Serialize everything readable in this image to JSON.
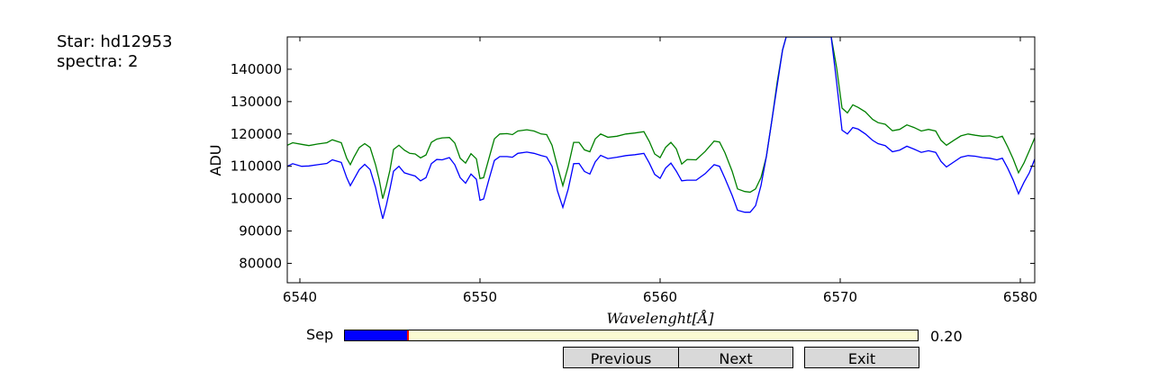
{
  "info": {
    "star_line": "Star: hd12953",
    "spectra_line": "spectra: 2"
  },
  "chart_data": {
    "type": "line",
    "title": "",
    "xlabel": "Wavelenght[Å]",
    "ylabel": "ADU",
    "xlim": [
      6539.3,
      6580.8
    ],
    "ylim": [
      74000,
      150000
    ],
    "xticks": [
      6540,
      6550,
      6560,
      6570,
      6580
    ],
    "yticks": [
      80000,
      90000,
      100000,
      110000,
      120000,
      130000,
      140000
    ],
    "grid": false,
    "series": [
      {
        "color": "#008000",
        "points": [
          [
            6539.3,
            116500
          ],
          [
            6539.6,
            117300
          ],
          [
            6540.1,
            116800
          ],
          [
            6540.5,
            116400
          ],
          [
            6541.0,
            116900
          ],
          [
            6541.5,
            117300
          ],
          [
            6541.8,
            118200
          ],
          [
            6542.3,
            117300
          ],
          [
            6542.6,
            112500
          ],
          [
            6542.8,
            110500
          ],
          [
            6543.0,
            112800
          ],
          [
            6543.3,
            115800
          ],
          [
            6543.6,
            117000
          ],
          [
            6543.9,
            115800
          ],
          [
            6544.2,
            110500
          ],
          [
            6544.4,
            106000
          ],
          [
            6544.6,
            100000
          ],
          [
            6544.8,
            104000
          ],
          [
            6545.0,
            108800
          ],
          [
            6545.2,
            115200
          ],
          [
            6545.5,
            116500
          ],
          [
            6545.8,
            115000
          ],
          [
            6546.1,
            114000
          ],
          [
            6546.4,
            113800
          ],
          [
            6546.7,
            112600
          ],
          [
            6547.0,
            113500
          ],
          [
            6547.3,
            117400
          ],
          [
            6547.6,
            118400
          ],
          [
            6547.9,
            118800
          ],
          [
            6548.3,
            118900
          ],
          [
            6548.6,
            117200
          ],
          [
            6548.9,
            112500
          ],
          [
            6549.2,
            111000
          ],
          [
            6549.5,
            113900
          ],
          [
            6549.8,
            112300
          ],
          [
            6550.0,
            106200
          ],
          [
            6550.2,
            106500
          ],
          [
            6550.5,
            112500
          ],
          [
            6550.8,
            118500
          ],
          [
            6551.1,
            120000
          ],
          [
            6551.5,
            120100
          ],
          [
            6551.8,
            119800
          ],
          [
            6552.1,
            120900
          ],
          [
            6552.6,
            121300
          ],
          [
            6553.0,
            120900
          ],
          [
            6553.4,
            120000
          ],
          [
            6553.7,
            119800
          ],
          [
            6554.0,
            116500
          ],
          [
            6554.3,
            110000
          ],
          [
            6554.6,
            104000
          ],
          [
            6554.9,
            110000
          ],
          [
            6555.2,
            117400
          ],
          [
            6555.5,
            117400
          ],
          [
            6555.8,
            115100
          ],
          [
            6556.1,
            114500
          ],
          [
            6556.4,
            118500
          ],
          [
            6556.7,
            120000
          ],
          [
            6557.1,
            119000
          ],
          [
            6557.6,
            119300
          ],
          [
            6558.1,
            120000
          ],
          [
            6558.6,
            120300
          ],
          [
            6559.1,
            120700
          ],
          [
            6559.4,
            117700
          ],
          [
            6559.7,
            113800
          ],
          [
            6560.0,
            112700
          ],
          [
            6560.3,
            115800
          ],
          [
            6560.6,
            117400
          ],
          [
            6560.9,
            115400
          ],
          [
            6561.2,
            110700
          ],
          [
            6561.5,
            112100
          ],
          [
            6562.0,
            112000
          ],
          [
            6562.5,
            114600
          ],
          [
            6563.0,
            117800
          ],
          [
            6563.3,
            117500
          ],
          [
            6563.6,
            114200
          ],
          [
            6564.0,
            108500
          ],
          [
            6564.3,
            103000
          ],
          [
            6564.7,
            102200
          ],
          [
            6565.0,
            102000
          ],
          [
            6565.3,
            103000
          ],
          [
            6565.6,
            106500
          ],
          [
            6565.9,
            113000
          ],
          [
            6566.2,
            124000
          ],
          [
            6566.5,
            136000
          ],
          [
            6566.8,
            146000
          ],
          [
            6567.0,
            150000
          ],
          [
            6569.5,
            150000
          ],
          [
            6569.8,
            140500
          ],
          [
            6570.1,
            128000
          ],
          [
            6570.4,
            126500
          ],
          [
            6570.7,
            129000
          ],
          [
            6571.0,
            128200
          ],
          [
            6571.4,
            126800
          ],
          [
            6571.8,
            124500
          ],
          [
            6572.1,
            123500
          ],
          [
            6572.5,
            123000
          ],
          [
            6572.9,
            121000
          ],
          [
            6573.3,
            121400
          ],
          [
            6573.7,
            122800
          ],
          [
            6574.1,
            122000
          ],
          [
            6574.5,
            120900
          ],
          [
            6574.9,
            121400
          ],
          [
            6575.3,
            120900
          ],
          [
            6575.6,
            118000
          ],
          [
            6575.9,
            116500
          ],
          [
            6576.3,
            118000
          ],
          [
            6576.7,
            119400
          ],
          [
            6577.1,
            120000
          ],
          [
            6577.5,
            119600
          ],
          [
            6577.9,
            119300
          ],
          [
            6578.3,
            119400
          ],
          [
            6578.7,
            118800
          ],
          [
            6579.0,
            119300
          ],
          [
            6579.3,
            116000
          ],
          [
            6579.6,
            112300
          ],
          [
            6579.9,
            108000
          ],
          [
            6580.2,
            111000
          ],
          [
            6580.5,
            114800
          ],
          [
            6580.8,
            118800
          ]
        ]
      },
      {
        "color": "#0000ff",
        "points": [
          [
            6539.3,
            110000
          ],
          [
            6539.6,
            110800
          ],
          [
            6540.1,
            110000
          ],
          [
            6540.5,
            110100
          ],
          [
            6541.0,
            110500
          ],
          [
            6541.5,
            110900
          ],
          [
            6541.8,
            112000
          ],
          [
            6542.3,
            111200
          ],
          [
            6542.6,
            106500
          ],
          [
            6542.8,
            104000
          ],
          [
            6543.0,
            106000
          ],
          [
            6543.3,
            109000
          ],
          [
            6543.6,
            110600
          ],
          [
            6543.9,
            109000
          ],
          [
            6544.2,
            103500
          ],
          [
            6544.4,
            98500
          ],
          [
            6544.6,
            93800
          ],
          [
            6544.8,
            98000
          ],
          [
            6545.0,
            103000
          ],
          [
            6545.2,
            108500
          ],
          [
            6545.5,
            110000
          ],
          [
            6545.8,
            108000
          ],
          [
            6546.1,
            107500
          ],
          [
            6546.4,
            107000
          ],
          [
            6546.7,
            105500
          ],
          [
            6547.0,
            106500
          ],
          [
            6547.3,
            110800
          ],
          [
            6547.6,
            112100
          ],
          [
            6547.9,
            112000
          ],
          [
            6548.3,
            112700
          ],
          [
            6548.6,
            110500
          ],
          [
            6548.9,
            106500
          ],
          [
            6549.2,
            104800
          ],
          [
            6549.5,
            107600
          ],
          [
            6549.8,
            106000
          ],
          [
            6550.0,
            99500
          ],
          [
            6550.2,
            99900
          ],
          [
            6550.5,
            106000
          ],
          [
            6550.8,
            111800
          ],
          [
            6551.1,
            113000
          ],
          [
            6551.5,
            113000
          ],
          [
            6551.8,
            112800
          ],
          [
            6552.1,
            114000
          ],
          [
            6552.6,
            114400
          ],
          [
            6553.0,
            114000
          ],
          [
            6553.4,
            113300
          ],
          [
            6553.7,
            112900
          ],
          [
            6554.0,
            110000
          ],
          [
            6554.3,
            102400
          ],
          [
            6554.6,
            97300
          ],
          [
            6554.9,
            103000
          ],
          [
            6555.2,
            110800
          ],
          [
            6555.5,
            110900
          ],
          [
            6555.8,
            108400
          ],
          [
            6556.1,
            107600
          ],
          [
            6556.4,
            111400
          ],
          [
            6556.7,
            113400
          ],
          [
            6557.1,
            112400
          ],
          [
            6557.6,
            112800
          ],
          [
            6558.1,
            113300
          ],
          [
            6558.6,
            113600
          ],
          [
            6559.1,
            114000
          ],
          [
            6559.4,
            111000
          ],
          [
            6559.7,
            107500
          ],
          [
            6560.0,
            106300
          ],
          [
            6560.3,
            109400
          ],
          [
            6560.6,
            111000
          ],
          [
            6560.9,
            108500
          ],
          [
            6561.2,
            105500
          ],
          [
            6561.5,
            105700
          ],
          [
            6562.0,
            105700
          ],
          [
            6562.5,
            107700
          ],
          [
            6563.0,
            110500
          ],
          [
            6563.3,
            110000
          ],
          [
            6563.6,
            106300
          ],
          [
            6564.0,
            101000
          ],
          [
            6564.3,
            96400
          ],
          [
            6564.7,
            95800
          ],
          [
            6565.0,
            95800
          ],
          [
            6565.3,
            97800
          ],
          [
            6565.6,
            104000
          ],
          [
            6565.9,
            113000
          ],
          [
            6566.2,
            124000
          ],
          [
            6566.5,
            135000
          ],
          [
            6566.8,
            146000
          ],
          [
            6567.0,
            150000
          ],
          [
            6569.5,
            150000
          ],
          [
            6569.8,
            136000
          ],
          [
            6570.1,
            121200
          ],
          [
            6570.4,
            120000
          ],
          [
            6570.7,
            122000
          ],
          [
            6571.0,
            121500
          ],
          [
            6571.4,
            120000
          ],
          [
            6571.8,
            118000
          ],
          [
            6572.1,
            117000
          ],
          [
            6572.5,
            116400
          ],
          [
            6572.9,
            114500
          ],
          [
            6573.3,
            115000
          ],
          [
            6573.7,
            116200
          ],
          [
            6574.1,
            115300
          ],
          [
            6574.5,
            114300
          ],
          [
            6574.9,
            114800
          ],
          [
            6575.3,
            114300
          ],
          [
            6575.6,
            111500
          ],
          [
            6575.9,
            109800
          ],
          [
            6576.3,
            111300
          ],
          [
            6576.7,
            112800
          ],
          [
            6577.1,
            113300
          ],
          [
            6577.5,
            113100
          ],
          [
            6577.9,
            112700
          ],
          [
            6578.3,
            112500
          ],
          [
            6578.7,
            112000
          ],
          [
            6579.0,
            112500
          ],
          [
            6579.3,
            109400
          ],
          [
            6579.6,
            105800
          ],
          [
            6579.9,
            101500
          ],
          [
            6580.2,
            105000
          ],
          [
            6580.5,
            108000
          ],
          [
            6580.8,
            112200
          ]
        ]
      }
    ]
  },
  "slider": {
    "label": "Sep",
    "value": 0.2,
    "value_text": "0.20",
    "fill_fraction": 0.11,
    "fill_color": "#0000ff",
    "handle_color": "#ff0000"
  },
  "buttons": {
    "previous": "Previous",
    "next": "Next",
    "exit": "Exit"
  }
}
